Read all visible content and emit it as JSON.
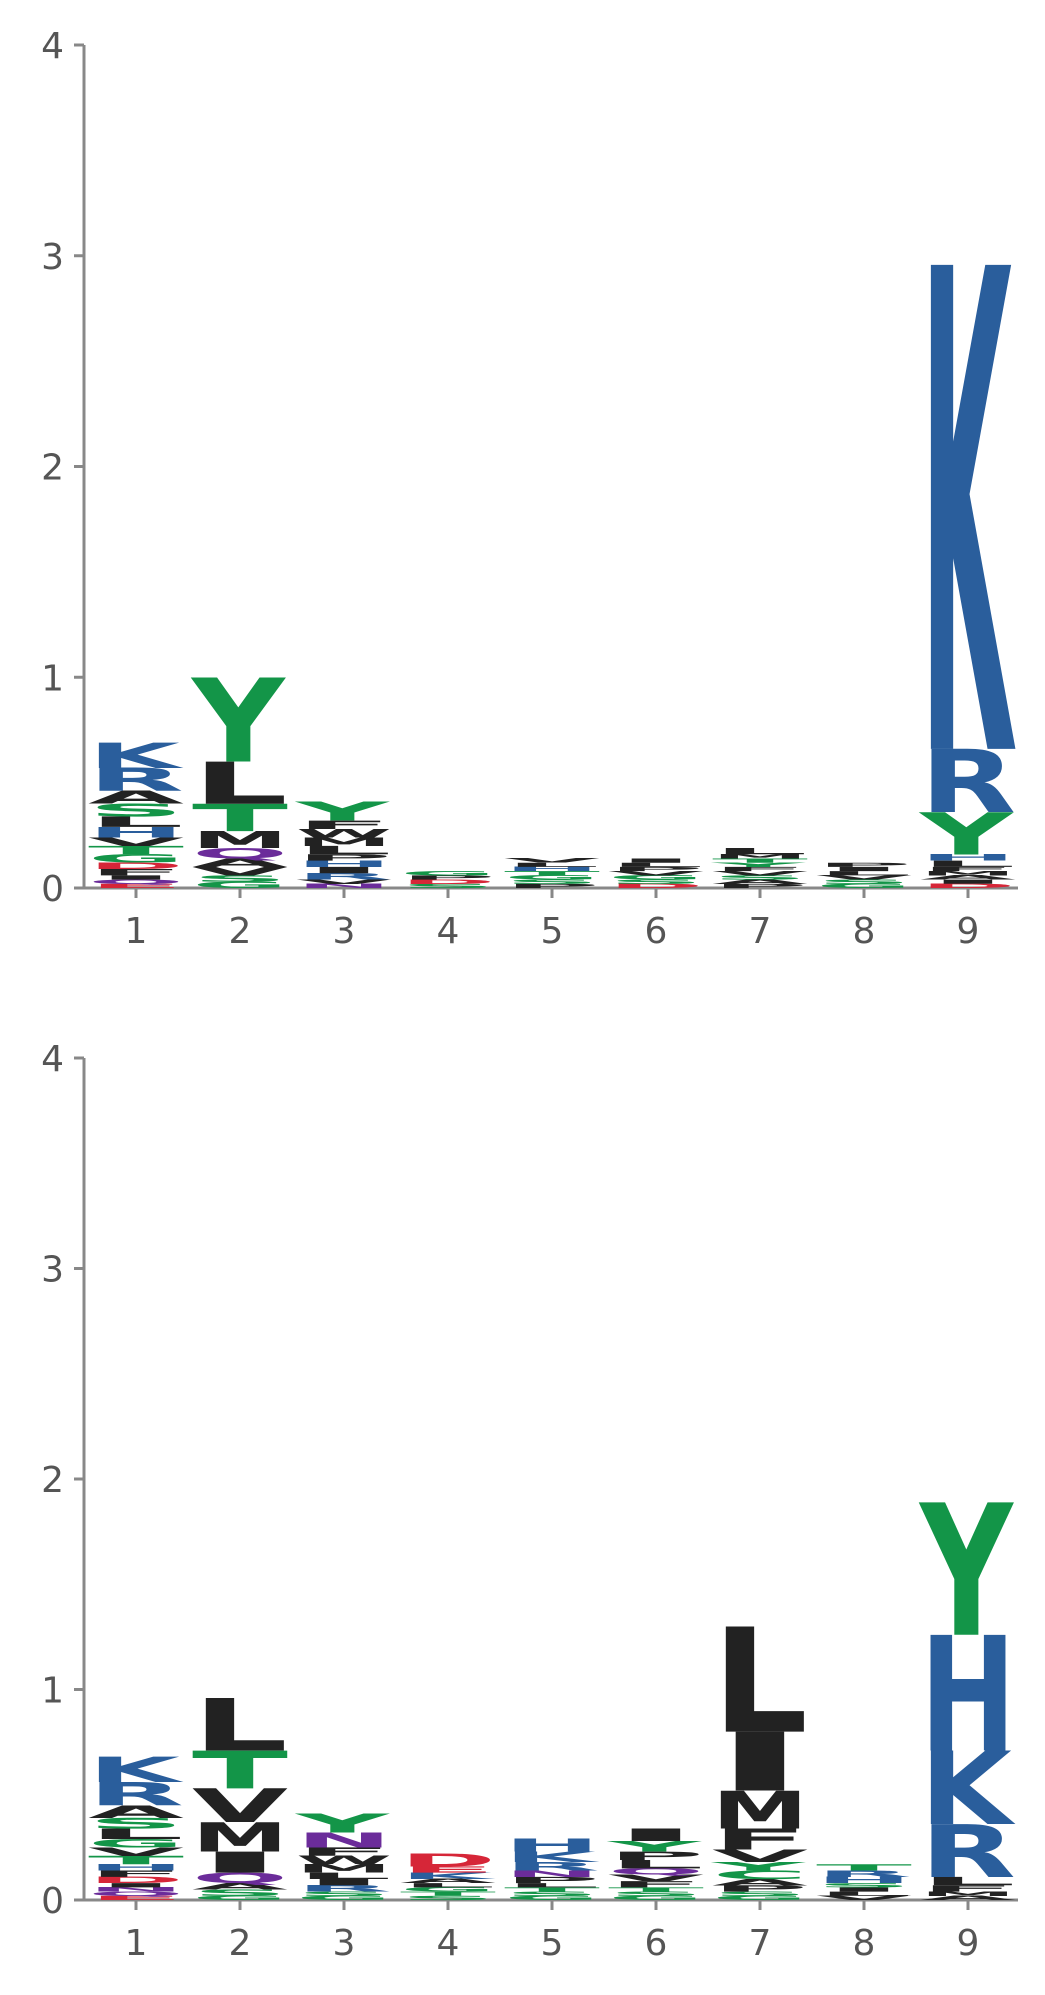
{
  "chart_data": [
    {
      "type": "sequence_logo",
      "title": "",
      "xlabel": "",
      "ylabel": "",
      "ylim": [
        0,
        4
      ],
      "yticks": [
        "0",
        "1",
        "2",
        "3",
        "4"
      ],
      "categories": [
        "1",
        "2",
        "3",
        "4",
        "5",
        "6",
        "7",
        "8",
        "9"
      ],
      "grid": false,
      "positions": [
        {
          "pos": "1",
          "letters": [
            {
              "letter": "E",
              "height": 0.02
            },
            {
              "letter": "Q",
              "height": 0.02
            },
            {
              "letter": "I",
              "height": 0.02
            },
            {
              "letter": "F",
              "height": 0.03
            },
            {
              "letter": "D",
              "height": 0.03
            },
            {
              "letter": "G",
              "height": 0.04
            },
            {
              "letter": "T",
              "height": 0.04
            },
            {
              "letter": "V",
              "height": 0.04
            },
            {
              "letter": "H",
              "height": 0.05
            },
            {
              "letter": "L",
              "height": 0.05
            },
            {
              "letter": "S",
              "height": 0.06
            },
            {
              "letter": "A",
              "height": 0.06
            },
            {
              "letter": "R",
              "height": 0.11
            },
            {
              "letter": "K",
              "height": 0.12
            }
          ]
        },
        {
          "pos": "2",
          "letters": [
            {
              "letter": "G",
              "height": 0.03
            },
            {
              "letter": "S",
              "height": 0.03
            },
            {
              "letter": "V",
              "height": 0.04
            },
            {
              "letter": "A",
              "height": 0.04
            },
            {
              "letter": "Q",
              "height": 0.05
            },
            {
              "letter": "M",
              "height": 0.08
            },
            {
              "letter": "T",
              "height": 0.13
            },
            {
              "letter": "L",
              "height": 0.2
            },
            {
              "letter": "Y",
              "height": 0.4
            }
          ]
        },
        {
          "pos": "3",
          "letters": [
            {
              "letter": "N",
              "height": 0.02
            },
            {
              "letter": "V",
              "height": 0.02
            },
            {
              "letter": "R",
              "height": 0.03
            },
            {
              "letter": "I",
              "height": 0.03
            },
            {
              "letter": "H",
              "height": 0.03
            },
            {
              "letter": "P",
              "height": 0.03
            },
            {
              "letter": "L",
              "height": 0.04
            },
            {
              "letter": "M",
              "height": 0.04
            },
            {
              "letter": "W",
              "height": 0.04
            },
            {
              "letter": "F",
              "height": 0.04
            },
            {
              "letter": "Y",
              "height": 0.09
            }
          ]
        },
        {
          "pos": "4",
          "letters": [
            {
              "letter": "S",
              "height": 0.02
            },
            {
              "letter": "D",
              "height": 0.02
            },
            {
              "letter": "P",
              "height": 0.02
            },
            {
              "letter": "G",
              "height": 0.02
            }
          ]
        },
        {
          "pos": "5",
          "letters": [
            {
              "letter": "P",
              "height": 0.02
            },
            {
              "letter": "S",
              "height": 0.02
            },
            {
              "letter": "G",
              "height": 0.02
            },
            {
              "letter": "T",
              "height": 0.02
            },
            {
              "letter": "H",
              "height": 0.02
            },
            {
              "letter": "L",
              "height": 0.02
            },
            {
              "letter": "V",
              "height": 0.02
            }
          ]
        },
        {
          "pos": "6",
          "letters": [
            {
              "letter": "D",
              "height": 0.02
            },
            {
              "letter": "S",
              "height": 0.02
            },
            {
              "letter": "G",
              "height": 0.02
            },
            {
              "letter": "V",
              "height": 0.02
            },
            {
              "letter": "P",
              "height": 0.02
            },
            {
              "letter": "L",
              "height": 0.02
            },
            {
              "letter": "I",
              "height": 0.02
            }
          ]
        },
        {
          "pos": "7",
          "letters": [
            {
              "letter": "P",
              "height": 0.02
            },
            {
              "letter": "A",
              "height": 0.02
            },
            {
              "letter": "S",
              "height": 0.02
            },
            {
              "letter": "V",
              "height": 0.02
            },
            {
              "letter": "F",
              "height": 0.02
            },
            {
              "letter": "Y",
              "height": 0.02
            },
            {
              "letter": "T",
              "height": 0.02
            },
            {
              "letter": "M",
              "height": 0.02
            },
            {
              "letter": "L",
              "height": 0.03
            }
          ]
        },
        {
          "pos": "8",
          "letters": [
            {
              "letter": "G",
              "height": 0.02
            },
            {
              "letter": "S",
              "height": 0.02
            },
            {
              "letter": "V",
              "height": 0.02
            },
            {
              "letter": "L",
              "height": 0.02
            },
            {
              "letter": "I",
              "height": 0.02
            },
            {
              "letter": "P",
              "height": 0.02
            }
          ]
        },
        {
          "pos": "9",
          "letters": [
            {
              "letter": "D",
              "height": 0.02
            },
            {
              "letter": "I",
              "height": 0.02
            },
            {
              "letter": "A",
              "height": 0.02
            },
            {
              "letter": "M",
              "height": 0.02
            },
            {
              "letter": "F",
              "height": 0.02
            },
            {
              "letter": "L",
              "height": 0.03
            },
            {
              "letter": "H",
              "height": 0.03
            },
            {
              "letter": "Y",
              "height": 0.2
            },
            {
              "letter": "R",
              "height": 0.3
            },
            {
              "letter": "K",
              "height": 2.3
            }
          ]
        }
      ]
    },
    {
      "type": "sequence_logo",
      "title": "",
      "xlabel": "",
      "ylabel": "",
      "ylim": [
        0,
        4
      ],
      "yticks": [
        "0",
        "1",
        "2",
        "3",
        "4"
      ],
      "categories": [
        "1",
        "2",
        "3",
        "4",
        "5",
        "6",
        "7",
        "8",
        "9"
      ],
      "grid": false,
      "positions": [
        {
          "pos": "1",
          "letters": [
            {
              "letter": "E",
              "height": 0.02
            },
            {
              "letter": "Q",
              "height": 0.02
            },
            {
              "letter": "N",
              "height": 0.02
            },
            {
              "letter": "I",
              "height": 0.02
            },
            {
              "letter": "D",
              "height": 0.03
            },
            {
              "letter": "F",
              "height": 0.03
            },
            {
              "letter": "H",
              "height": 0.03
            },
            {
              "letter": "T",
              "height": 0.04
            },
            {
              "letter": "V",
              "height": 0.04
            },
            {
              "letter": "G",
              "height": 0.04
            },
            {
              "letter": "L",
              "height": 0.05
            },
            {
              "letter": "S",
              "height": 0.05
            },
            {
              "letter": "A",
              "height": 0.06
            },
            {
              "letter": "R",
              "height": 0.11
            },
            {
              "letter": "K",
              "height": 0.12
            }
          ]
        },
        {
          "pos": "2",
          "letters": [
            {
              "letter": "G",
              "height": 0.02
            },
            {
              "letter": "S",
              "height": 0.03
            },
            {
              "letter": "A",
              "height": 0.03
            },
            {
              "letter": "Q",
              "height": 0.05
            },
            {
              "letter": "I",
              "height": 0.1
            },
            {
              "letter": "M",
              "height": 0.14
            },
            {
              "letter": "V",
              "height": 0.16
            },
            {
              "letter": "T",
              "height": 0.18
            },
            {
              "letter": "L",
              "height": 0.25
            }
          ]
        },
        {
          "pos": "3",
          "letters": [
            {
              "letter": "G",
              "height": 0.02
            },
            {
              "letter": "S",
              "height": 0.02
            },
            {
              "letter": "R",
              "height": 0.03
            },
            {
              "letter": "I",
              "height": 0.03
            },
            {
              "letter": "L",
              "height": 0.03
            },
            {
              "letter": "M",
              "height": 0.04
            },
            {
              "letter": "W",
              "height": 0.04
            },
            {
              "letter": "F",
              "height": 0.04
            },
            {
              "letter": "N",
              "height": 0.07
            },
            {
              "letter": "Y",
              "height": 0.09
            }
          ]
        },
        {
          "pos": "4",
          "letters": [
            {
              "letter": "S",
              "height": 0.02
            },
            {
              "letter": "T",
              "height": 0.02
            },
            {
              "letter": "G",
              "height": 0.02
            },
            {
              "letter": "L",
              "height": 0.02
            },
            {
              "letter": "A",
              "height": 0.02
            },
            {
              "letter": "K",
              "height": 0.03
            },
            {
              "letter": "E",
              "height": 0.03
            },
            {
              "letter": "D",
              "height": 0.06
            }
          ]
        },
        {
          "pos": "5",
          "letters": [
            {
              "letter": "G",
              "height": 0.02
            },
            {
              "letter": "S",
              "height": 0.02
            },
            {
              "letter": "T",
              "height": 0.02
            },
            {
              "letter": "L",
              "height": 0.02
            },
            {
              "letter": "P",
              "height": 0.03
            },
            {
              "letter": "N",
              "height": 0.03
            },
            {
              "letter": "R",
              "height": 0.04
            },
            {
              "letter": "K",
              "height": 0.05
            },
            {
              "letter": "H",
              "height": 0.06
            }
          ]
        },
        {
          "pos": "6",
          "letters": [
            {
              "letter": "G",
              "height": 0.02
            },
            {
              "letter": "S",
              "height": 0.02
            },
            {
              "letter": "T",
              "height": 0.02
            },
            {
              "letter": "F",
              "height": 0.03
            },
            {
              "letter": "V",
              "height": 0.03
            },
            {
              "letter": "Q",
              "height": 0.03
            },
            {
              "letter": "L",
              "height": 0.04
            },
            {
              "letter": "P",
              "height": 0.04
            },
            {
              "letter": "Y",
              "height": 0.05
            },
            {
              "letter": "I",
              "height": 0.06
            }
          ]
        },
        {
          "pos": "7",
          "letters": [
            {
              "letter": "G",
              "height": 0.02
            },
            {
              "letter": "S",
              "height": 0.02
            },
            {
              "letter": "P",
              "height": 0.03
            },
            {
              "letter": "A",
              "height": 0.03
            },
            {
              "letter": "C",
              "height": 0.04
            },
            {
              "letter": "Y",
              "height": 0.04
            },
            {
              "letter": "V",
              "height": 0.06
            },
            {
              "letter": "F",
              "height": 0.1
            },
            {
              "letter": "M",
              "height": 0.18
            },
            {
              "letter": "I",
              "height": 0.28
            },
            {
              "letter": "L",
              "height": 0.5
            }
          ]
        },
        {
          "pos": "8",
          "letters": [
            {
              "letter": "V",
              "height": 0.02
            },
            {
              "letter": "L",
              "height": 0.02
            },
            {
              "letter": "I",
              "height": 0.02
            },
            {
              "letter": "S",
              "height": 0.02
            },
            {
              "letter": "H",
              "height": 0.03
            },
            {
              "letter": "R",
              "height": 0.03
            },
            {
              "letter": "T",
              "height": 0.03
            }
          ]
        },
        {
          "pos": "9",
          "letters": [
            {
              "letter": "A",
              "height": 0.02
            },
            {
              "letter": "M",
              "height": 0.02
            },
            {
              "letter": "F",
              "height": 0.03
            },
            {
              "letter": "L",
              "height": 0.04
            },
            {
              "letter": "R",
              "height": 0.25
            },
            {
              "letter": "K",
              "height": 0.35
            },
            {
              "letter": "H",
              "height": 0.55
            },
            {
              "letter": "Y",
              "height": 0.63
            }
          ]
        }
      ]
    }
  ],
  "colors": {
    "basic": "#2a5e9c",
    "polar": "#139548",
    "hydrophobic": "#222222",
    "acidic": "#d62638",
    "amide": "#6b2c9a",
    "axis": "#888888",
    "tick_text": "#555555"
  }
}
